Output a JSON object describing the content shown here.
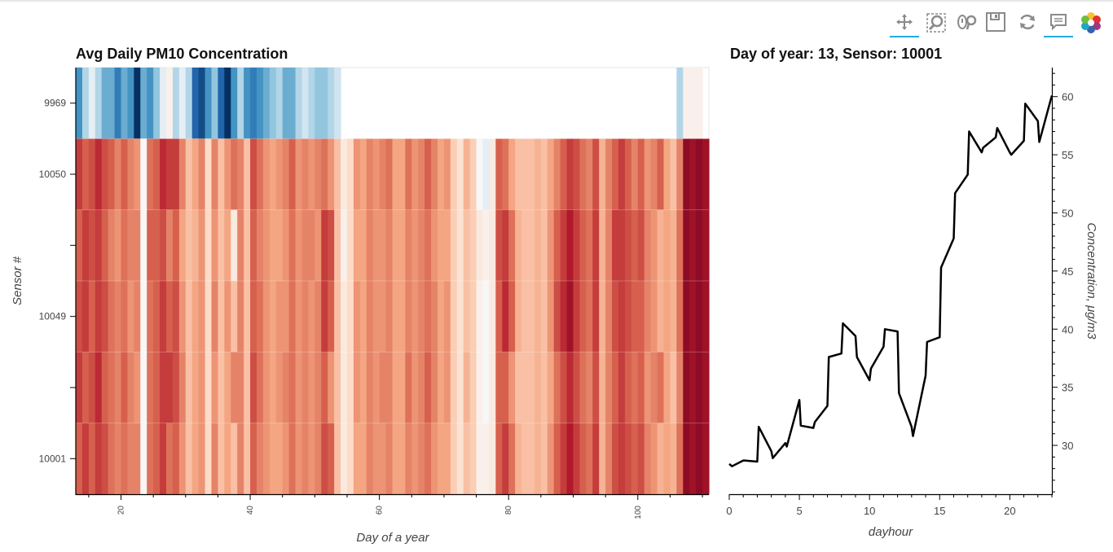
{
  "toolbar": {
    "tools": [
      "pan-icon",
      "box-zoom-icon",
      "wheel-zoom-icon",
      "save-icon",
      "reset-icon",
      "hover-icon",
      "bokeh-logo-icon"
    ]
  },
  "chart_data": [
    {
      "type": "heatmap",
      "title": "Avg Daily PM10 Concentration",
      "xlabel": "Day of a year",
      "ylabel": "Sensor #",
      "xlim": [
        13,
        111
      ],
      "x_ticks": [
        20,
        40,
        60,
        80,
        100
      ],
      "y_categories": [
        "10001",
        "",
        "10049",
        "",
        "10050",
        "9969"
      ],
      "y_tick_labels": [
        "10001",
        "10049",
        "10050",
        "9969"
      ],
      "colormap": "RdBu (blue = low, red = high)",
      "rows": [
        {
          "sensor": "9969",
          "levels": [
            -0.6,
            -0.3,
            -0.1,
            -0.3,
            -0.5,
            -0.5,
            -0.7,
            -0.5,
            -0.6,
            -1.0,
            -0.5,
            -0.6,
            -0.4,
            -0.1,
            0.05,
            -0.3,
            -0.1,
            -0.3,
            -0.8,
            -0.9,
            -0.6,
            -0.4,
            -0.8,
            -1.0,
            -0.6,
            -0.3,
            -0.6,
            -0.7,
            -0.6,
            -0.5,
            -0.4,
            -0.3,
            -0.5,
            -0.5,
            -0.3,
            -0.2,
            -0.3,
            -0.4,
            -0.4,
            -0.3,
            -0.2,
            null,
            null,
            null,
            null,
            null,
            null,
            null,
            null,
            null,
            null,
            null,
            null,
            null,
            null,
            null,
            null,
            null,
            null,
            null,
            null,
            null,
            null,
            null,
            null,
            null,
            null,
            null,
            null,
            null,
            null,
            null,
            null,
            null,
            null,
            null,
            null,
            null,
            null,
            null,
            null,
            null,
            null,
            null,
            null,
            null,
            null,
            null,
            null,
            null,
            null,
            null,
            null,
            -0.3,
            0.05,
            0.05,
            0.05,
            null
          ]
        },
        {
          "sensor": "10050",
          "levels": [
            0.7,
            0.6,
            0.65,
            0.75,
            0.65,
            0.6,
            0.5,
            0.6,
            0.5,
            0.45,
            0.0,
            0.55,
            0.6,
            0.75,
            0.7,
            0.7,
            0.5,
            0.3,
            0.4,
            0.5,
            0.2,
            0.5,
            0.3,
            0.45,
            0.55,
            0.5,
            0.3,
            0.65,
            0.55,
            0.45,
            0.4,
            0.45,
            0.5,
            0.6,
            0.45,
            0.5,
            0.45,
            0.5,
            0.55,
            0.45,
            0.3,
            0.1,
            0.2,
            0.45,
            0.4,
            0.5,
            0.45,
            0.5,
            0.55,
            0.4,
            0.4,
            0.55,
            0.45,
            0.5,
            0.6,
            0.5,
            0.4,
            0.45,
            0.25,
            0.15,
            0.35,
            0.25,
            0.0,
            -0.1,
            0.1,
            0.6,
            0.55,
            0.4,
            0.3,
            0.3,
            0.3,
            0.35,
            0.3,
            0.4,
            0.5,
            0.6,
            0.7,
            0.65,
            0.55,
            0.5,
            0.65,
            0.35,
            0.5,
            0.6,
            0.7,
            0.6,
            0.5,
            0.6,
            0.45,
            0.5,
            0.6,
            0.4,
            0.3,
            0.5,
            0.9,
            0.85,
            0.9,
            0.85
          ]
        },
        {
          "sensor": "",
          "levels": [
            0.6,
            0.7,
            0.65,
            0.7,
            0.6,
            0.5,
            0.45,
            0.55,
            0.5,
            0.5,
            0.0,
            0.6,
            0.6,
            0.65,
            0.5,
            0.6,
            0.4,
            0.3,
            0.35,
            0.45,
            0.2,
            0.45,
            0.3,
            0.4,
            0.1,
            0.5,
            0.3,
            0.6,
            0.5,
            0.45,
            0.4,
            0.4,
            0.45,
            0.55,
            0.45,
            0.5,
            0.5,
            0.45,
            0.7,
            0.65,
            0.3,
            0.05,
            0.2,
            0.4,
            0.4,
            0.5,
            0.45,
            0.45,
            0.5,
            0.4,
            0.4,
            0.5,
            0.45,
            0.5,
            0.55,
            0.45,
            0.4,
            0.4,
            0.25,
            0.15,
            0.3,
            0.25,
            0.1,
            0.05,
            0.1,
            0.65,
            0.7,
            0.55,
            0.35,
            0.3,
            0.3,
            0.35,
            0.3,
            0.45,
            0.6,
            0.7,
            0.8,
            0.7,
            0.6,
            0.55,
            0.7,
            0.35,
            0.5,
            0.7,
            0.7,
            0.65,
            0.6,
            0.65,
            0.5,
            0.45,
            0.35,
            0.4,
            0.35,
            0.55,
            0.9,
            0.85,
            0.9,
            0.85
          ]
        },
        {
          "sensor": "10049",
          "levels": [
            0.65,
            0.7,
            0.6,
            0.7,
            0.65,
            0.55,
            0.5,
            0.55,
            0.45,
            0.5,
            0.0,
            0.55,
            0.6,
            0.7,
            0.6,
            0.65,
            0.45,
            0.3,
            0.4,
            0.45,
            0.2,
            0.5,
            0.3,
            0.45,
            0.3,
            0.5,
            0.3,
            0.6,
            0.55,
            0.45,
            0.4,
            0.45,
            0.45,
            0.55,
            0.45,
            0.5,
            0.45,
            0.5,
            0.7,
            0.6,
            0.3,
            0.1,
            0.2,
            0.45,
            0.4,
            0.5,
            0.45,
            0.45,
            0.5,
            0.4,
            0.4,
            0.5,
            0.45,
            0.5,
            0.55,
            0.5,
            0.4,
            0.45,
            0.25,
            0.15,
            0.3,
            0.25,
            0.05,
            0.0,
            0.1,
            0.6,
            0.75,
            0.6,
            0.35,
            0.3,
            0.3,
            0.35,
            0.3,
            0.45,
            0.65,
            0.75,
            0.85,
            0.7,
            0.6,
            0.55,
            0.7,
            0.35,
            0.5,
            0.65,
            0.7,
            0.65,
            0.6,
            0.6,
            0.5,
            0.45,
            0.35,
            0.4,
            0.35,
            0.55,
            0.9,
            0.85,
            0.9,
            0.85
          ]
        },
        {
          "sensor": "",
          "levels": [
            0.7,
            0.6,
            0.65,
            0.75,
            0.6,
            0.55,
            0.5,
            0.6,
            0.5,
            0.45,
            0.0,
            0.55,
            0.6,
            0.7,
            0.7,
            0.65,
            0.5,
            0.3,
            0.4,
            0.45,
            0.2,
            0.45,
            0.3,
            0.4,
            0.5,
            0.5,
            0.3,
            0.65,
            0.55,
            0.45,
            0.4,
            0.45,
            0.5,
            0.55,
            0.45,
            0.5,
            0.45,
            0.5,
            0.6,
            0.45,
            0.3,
            0.1,
            0.2,
            0.45,
            0.4,
            0.5,
            0.45,
            0.5,
            0.5,
            0.4,
            0.4,
            0.55,
            0.45,
            0.5,
            0.6,
            0.5,
            0.4,
            0.45,
            0.25,
            0.15,
            0.35,
            0.25,
            0.05,
            0.0,
            0.1,
            0.6,
            0.6,
            0.45,
            0.3,
            0.3,
            0.3,
            0.35,
            0.3,
            0.4,
            0.55,
            0.65,
            0.75,
            0.65,
            0.55,
            0.5,
            0.65,
            0.35,
            0.5,
            0.6,
            0.7,
            0.6,
            0.55,
            0.6,
            0.45,
            0.5,
            0.55,
            0.4,
            0.3,
            0.5,
            0.9,
            0.85,
            0.9,
            0.85
          ]
        },
        {
          "sensor": "10001",
          "levels": [
            0.6,
            0.7,
            0.6,
            0.7,
            0.65,
            0.55,
            0.5,
            0.55,
            0.5,
            0.5,
            0.0,
            0.55,
            0.6,
            0.7,
            0.55,
            0.6,
            0.45,
            0.3,
            0.4,
            0.45,
            0.2,
            0.5,
            0.3,
            0.4,
            0.3,
            0.5,
            0.3,
            0.6,
            0.5,
            0.45,
            0.4,
            0.4,
            0.45,
            0.55,
            0.45,
            0.5,
            0.45,
            0.5,
            0.65,
            0.6,
            0.3,
            0.1,
            0.2,
            0.4,
            0.4,
            0.5,
            0.45,
            0.45,
            0.5,
            0.4,
            0.4,
            0.5,
            0.45,
            0.5,
            0.55,
            0.45,
            0.4,
            0.4,
            0.25,
            0.15,
            0.3,
            0.25,
            0.05,
            0.05,
            0.1,
            0.6,
            0.7,
            0.55,
            0.35,
            0.3,
            0.3,
            0.35,
            0.3,
            0.45,
            0.6,
            0.7,
            0.8,
            0.7,
            0.6,
            0.55,
            0.7,
            0.35,
            0.5,
            0.65,
            0.7,
            0.65,
            0.6,
            0.65,
            0.5,
            0.45,
            0.35,
            0.4,
            0.35,
            0.55,
            0.9,
            0.85,
            0.9,
            0.85
          ]
        }
      ]
    },
    {
      "type": "line",
      "title": "Day of year: 13, Sensor: 10001",
      "xlabel": "dayhour",
      "ylabel": "Concentration, μg/m3",
      "xlim": [
        0,
        23
      ],
      "ylim": [
        25.8,
        62.5
      ],
      "x_ticks": [
        0,
        5,
        10,
        15,
        20
      ],
      "y_ticks": [
        30,
        35,
        40,
        45,
        50,
        55,
        60
      ],
      "x": [
        0,
        0.2,
        1,
        1.1,
        2,
        2.1,
        3,
        3.1,
        4,
        4.1,
        5,
        5.1,
        6,
        6.1,
        7,
        7.1,
        8,
        8.1,
        9,
        9.1,
        10,
        10.1,
        11,
        11.1,
        12,
        12.1,
        13,
        13.1,
        14,
        14.1,
        15,
        15.1,
        16,
        16.1,
        17,
        17.1,
        18,
        18.1,
        19,
        19.1,
        20,
        20.1,
        21,
        21.1,
        22,
        22.1,
        23
      ],
      "y": [
        28.4,
        28.2,
        28.7,
        28.7,
        28.6,
        31.6,
        29.5,
        28.9,
        30.2,
        29.9,
        33.9,
        31.7,
        31.5,
        32.0,
        33.4,
        37.6,
        37.9,
        40.5,
        39.4,
        37.6,
        35.6,
        36.6,
        38.5,
        40.0,
        39.8,
        34.5,
        31.6,
        30.8,
        36.0,
        38.9,
        39.3,
        45.3,
        47.8,
        51.7,
        53.3,
        57.0,
        55.2,
        55.6,
        56.5,
        57.3,
        55.2,
        55.0,
        56.2,
        59.4,
        57.9,
        56.1,
        60.1
      ]
    }
  ]
}
